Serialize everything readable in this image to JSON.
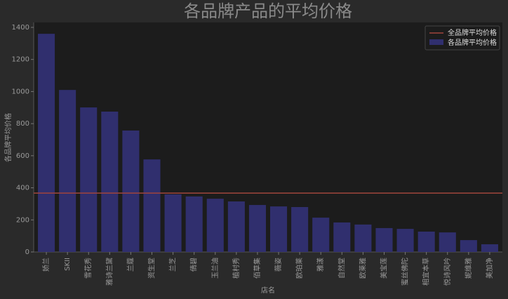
{
  "chart_data": {
    "type": "bar",
    "title": "各品牌产品的平均价格",
    "x_label": "店名",
    "y_label": "各品牌平均价格",
    "categories": [
      "娇兰",
      "SKII",
      "雪花秀",
      "雅诗兰黛",
      "兰蔻",
      "资生堂",
      "兰芝",
      "倩碧",
      "玉兰油",
      "植村秀",
      "佰草集",
      "薇姿",
      "欧珀莱",
      "雅漾",
      "自然堂",
      "欧莱雅",
      "美宝莲",
      "蜜丝佛陀",
      "相宜本草",
      "悦诗风吟",
      "妮维雅",
      "美加净"
    ],
    "series": [
      {
        "name": "各品牌平均价格",
        "color": "#302f6e",
        "values": [
          1360,
          1010,
          901,
          875,
          757,
          577,
          359,
          346,
          332,
          315,
          293,
          284,
          280,
          214,
          184,
          171,
          149,
          144,
          127,
          122,
          74,
          48
        ]
      }
    ],
    "reference_line": {
      "name": "全品牌平均价格",
      "value": 367,
      "color": "#a0453c"
    },
    "ylim": [
      0,
      1400
    ],
    "yticks": [
      0,
      200,
      400,
      600,
      800,
      1000,
      1200,
      1400
    ],
    "legend": "upper right"
  }
}
